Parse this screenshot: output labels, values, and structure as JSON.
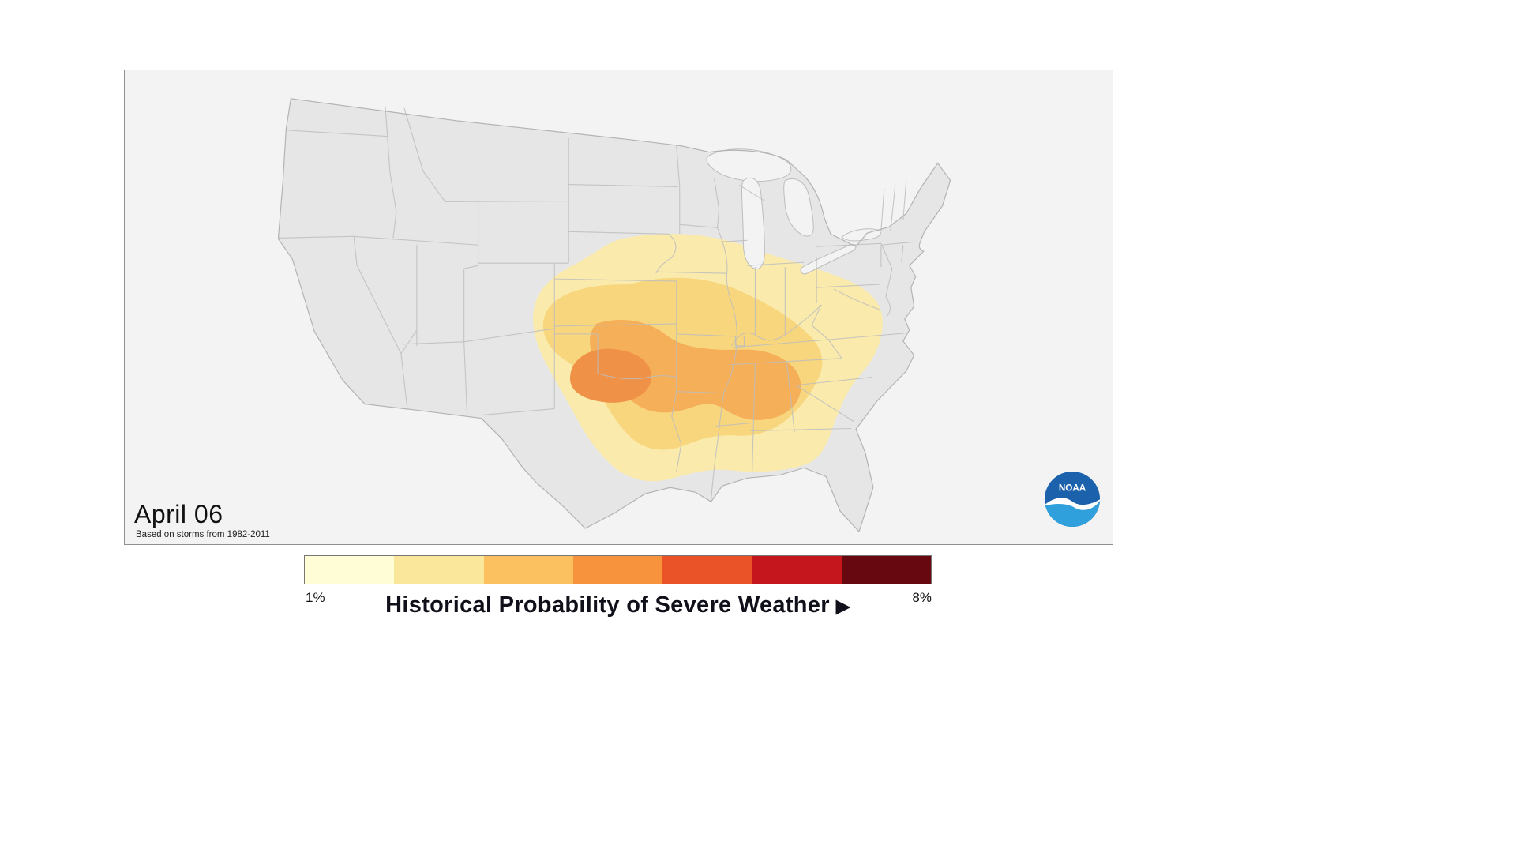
{
  "panel": {
    "date_label": "April 06",
    "source_note": "Based on storms from 1982-2011"
  },
  "noaa": {
    "label": "NOAA"
  },
  "legend": {
    "title": "Historical Probability of Severe Weather",
    "play_icon": "▶",
    "min_label": "1%",
    "max_label": "8%",
    "colors": [
      "#FFFDD6",
      "#FBE79B",
      "#FBC161",
      "#F6933C",
      "#EA5328",
      "#C5161D",
      "#67070F"
    ]
  },
  "map": {
    "panel_bg": "#f3f3f3",
    "land_fill": "#e6e6e6",
    "border_stroke": "#bdbdbd",
    "outline_stroke": "#b3b3b3",
    "lake_fill": "#f3f3f3",
    "contour_fills": [
      "#FAEBAC",
      "#F8D67E",
      "#F5AF59",
      "#EF9147"
    ],
    "logo_dark_blue": "#1B61AB",
    "logo_light_blue": "#2FA0DC"
  }
}
